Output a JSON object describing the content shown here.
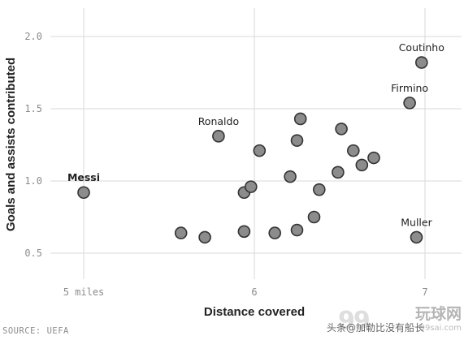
{
  "chart_data": {
    "type": "scatter",
    "xlabel": "Distance covered",
    "ylabel": "Goals and assists contributed",
    "xlim": [
      4.95,
      7.1
    ],
    "ylim": [
      0.4,
      2.1
    ],
    "x_ticks": [
      {
        "value": 5,
        "label": "5 miles"
      },
      {
        "value": 6,
        "label": "6"
      },
      {
        "value": 7,
        "label": "7"
      }
    ],
    "y_ticks": [
      {
        "value": 0.5,
        "label": "0.5"
      },
      {
        "value": 1.0,
        "label": "1.0"
      },
      {
        "value": 1.5,
        "label": "1.5"
      },
      {
        "value": 2.0,
        "label": "2.0"
      }
    ],
    "grid": true,
    "points": [
      {
        "x": 5.0,
        "y": 0.92,
        "label": "Messi",
        "bold": true,
        "label_pos": "above"
      },
      {
        "x": 5.79,
        "y": 1.31,
        "label": "Ronaldo",
        "bold": false,
        "label_pos": "above"
      },
      {
        "x": 6.98,
        "y": 1.82,
        "label": "Coutinho",
        "bold": false,
        "label_pos": "above"
      },
      {
        "x": 6.91,
        "y": 1.54,
        "label": "Firmino",
        "bold": false,
        "label_pos": "above"
      },
      {
        "x": 6.95,
        "y": 0.61,
        "label": "Muller",
        "bold": false,
        "label_pos": "above"
      },
      {
        "x": 5.57,
        "y": 0.64
      },
      {
        "x": 5.71,
        "y": 0.61
      },
      {
        "x": 5.94,
        "y": 0.65
      },
      {
        "x": 5.94,
        "y": 0.92
      },
      {
        "x": 5.98,
        "y": 0.96
      },
      {
        "x": 6.03,
        "y": 1.21
      },
      {
        "x": 6.12,
        "y": 0.64
      },
      {
        "x": 6.21,
        "y": 1.03
      },
      {
        "x": 6.25,
        "y": 0.66
      },
      {
        "x": 6.25,
        "y": 1.28
      },
      {
        "x": 6.27,
        "y": 1.43
      },
      {
        "x": 6.35,
        "y": 0.75
      },
      {
        "x": 6.38,
        "y": 0.94
      },
      {
        "x": 6.49,
        "y": 1.06
      },
      {
        "x": 6.51,
        "y": 1.36
      },
      {
        "x": 6.58,
        "y": 1.21
      },
      {
        "x": 6.63,
        "y": 1.11
      },
      {
        "x": 6.7,
        "y": 1.16
      }
    ]
  },
  "source": "SOURCE: UEFA",
  "watermark": {
    "caption": "头条@加勒比没有船长",
    "logo": "99",
    "site_cn": "玩球网",
    "site_en": "99sai.com"
  }
}
